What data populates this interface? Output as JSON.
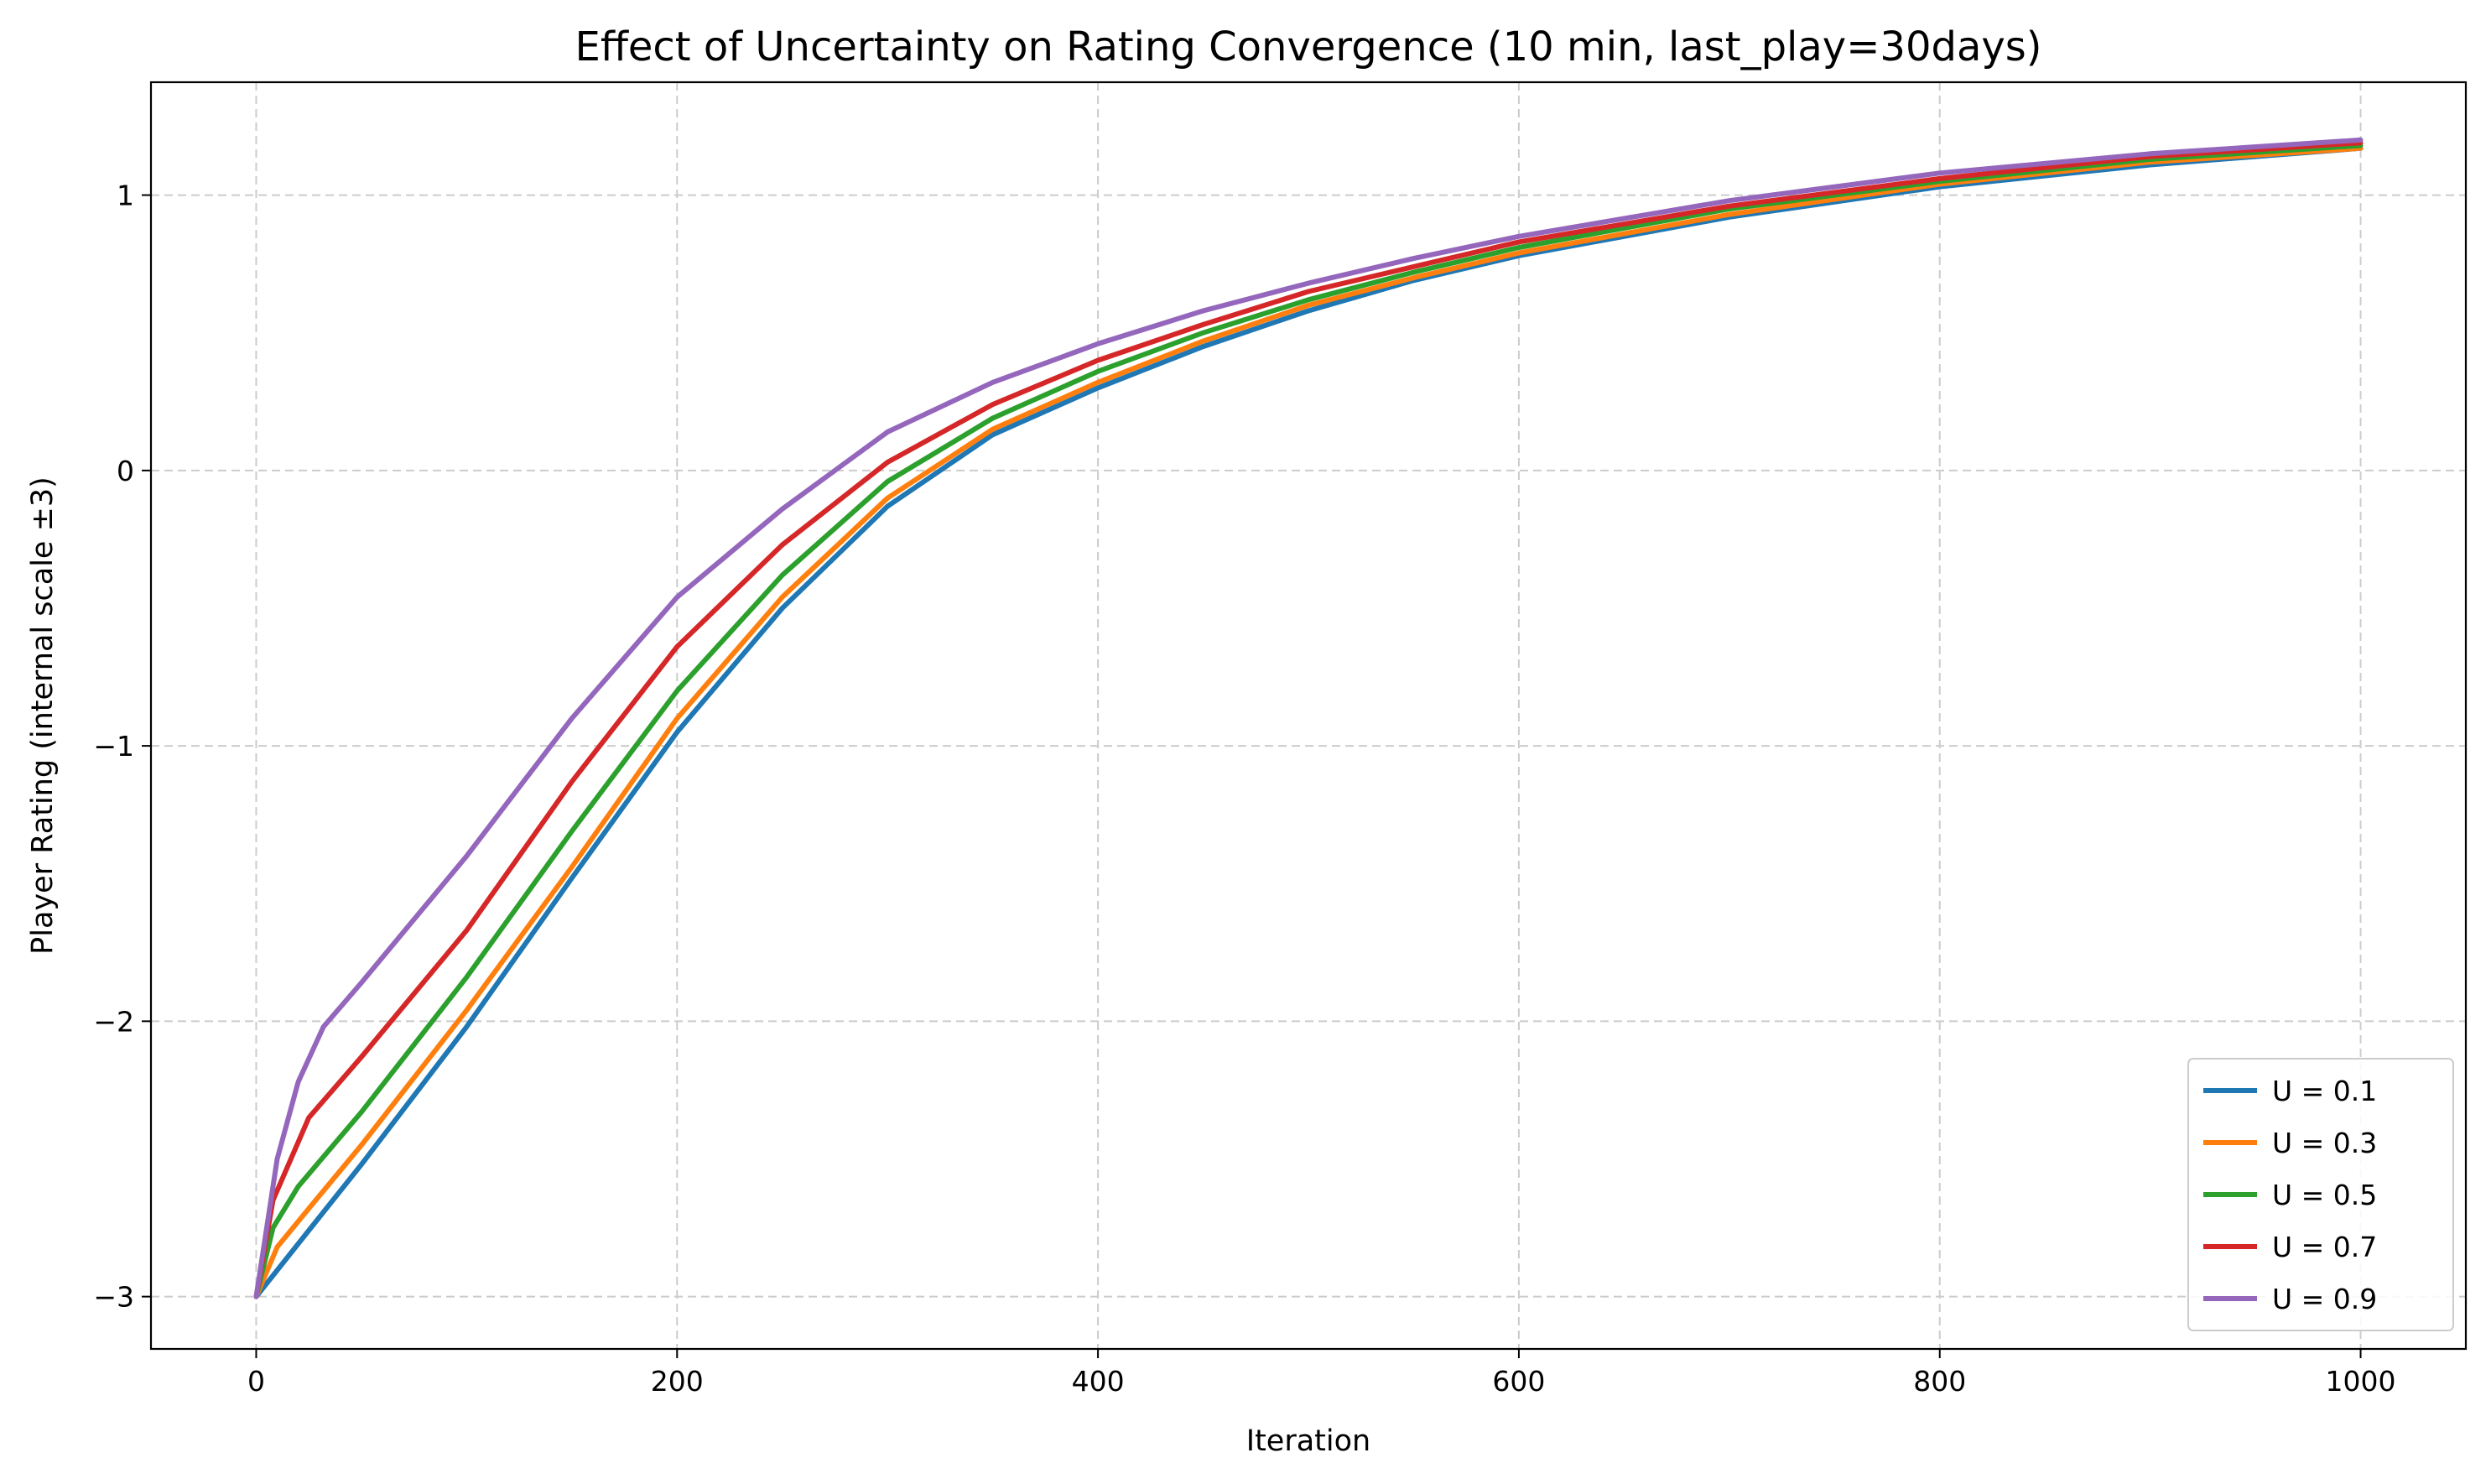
{
  "chart_data": {
    "type": "line",
    "title": "Effect of Uncertainty on Rating Convergence (10 min, last_play=30days)",
    "xlabel": "Iteration",
    "ylabel": "Player Rating (internal scale ±3)",
    "xlim": [
      -50,
      1050
    ],
    "ylim": [
      -3.19,
      1.41
    ],
    "x_ticks": [
      0,
      200,
      400,
      600,
      800,
      1000
    ],
    "x_tick_labels": [
      "0",
      "200",
      "400",
      "600",
      "800",
      "1000"
    ],
    "y_ticks": [
      -3,
      -2,
      -1,
      0,
      1
    ],
    "y_tick_labels": [
      "−3",
      "−2",
      "−1",
      "0",
      "1"
    ],
    "grid": true,
    "legend_position": "lower-right",
    "series": [
      {
        "name": "U = 0.1",
        "color": "#1f77b4",
        "x": [
          0,
          25,
          50,
          100,
          150,
          200,
          250,
          300,
          350,
          400,
          450,
          500,
          550,
          600,
          700,
          800,
          900,
          1000
        ],
        "y": [
          -3.0,
          -2.76,
          -2.52,
          -2.02,
          -1.48,
          -0.95,
          -0.5,
          -0.13,
          0.13,
          0.3,
          0.45,
          0.58,
          0.69,
          0.78,
          0.92,
          1.03,
          1.11,
          1.17
        ]
      },
      {
        "name": "U = 0.3",
        "color": "#ff7f0e",
        "x": [
          0,
          10,
          25,
          50,
          100,
          150,
          200,
          250,
          300,
          350,
          400,
          450,
          500,
          550,
          600,
          700,
          800,
          900,
          1000
        ],
        "y": [
          -3.0,
          -2.82,
          -2.68,
          -2.45,
          -1.96,
          -1.44,
          -0.9,
          -0.46,
          -0.1,
          0.15,
          0.32,
          0.47,
          0.6,
          0.7,
          0.79,
          0.93,
          1.04,
          1.12,
          1.17
        ]
      },
      {
        "name": "U = 0.5",
        "color": "#2ca02c",
        "x": [
          0,
          8,
          20,
          50,
          100,
          150,
          200,
          250,
          300,
          350,
          400,
          450,
          500,
          550,
          600,
          700,
          800,
          900,
          1000
        ],
        "y": [
          -3.0,
          -2.75,
          -2.6,
          -2.33,
          -1.84,
          -1.31,
          -0.8,
          -0.38,
          -0.04,
          0.19,
          0.36,
          0.5,
          0.62,
          0.72,
          0.81,
          0.95,
          1.05,
          1.13,
          1.18
        ]
      },
      {
        "name": "U = 0.7",
        "color": "#d62728",
        "x": [
          0,
          8,
          25,
          50,
          100,
          150,
          200,
          250,
          300,
          350,
          400,
          450,
          500,
          550,
          600,
          700,
          800,
          900,
          1000
        ],
        "y": [
          -3.0,
          -2.65,
          -2.35,
          -2.13,
          -1.67,
          -1.13,
          -0.64,
          -0.27,
          0.03,
          0.24,
          0.4,
          0.53,
          0.65,
          0.74,
          0.83,
          0.96,
          1.06,
          1.14,
          1.19
        ]
      },
      {
        "name": "U = 0.9",
        "color": "#9467bd",
        "x": [
          0,
          10,
          20,
          32,
          50,
          100,
          150,
          200,
          250,
          300,
          350,
          400,
          450,
          500,
          550,
          600,
          700,
          800,
          900,
          1000
        ],
        "y": [
          -3.0,
          -2.5,
          -2.22,
          -2.02,
          -1.86,
          -1.4,
          -0.9,
          -0.46,
          -0.14,
          0.14,
          0.32,
          0.46,
          0.58,
          0.68,
          0.77,
          0.85,
          0.98,
          1.08,
          1.15,
          1.2
        ]
      }
    ]
  }
}
